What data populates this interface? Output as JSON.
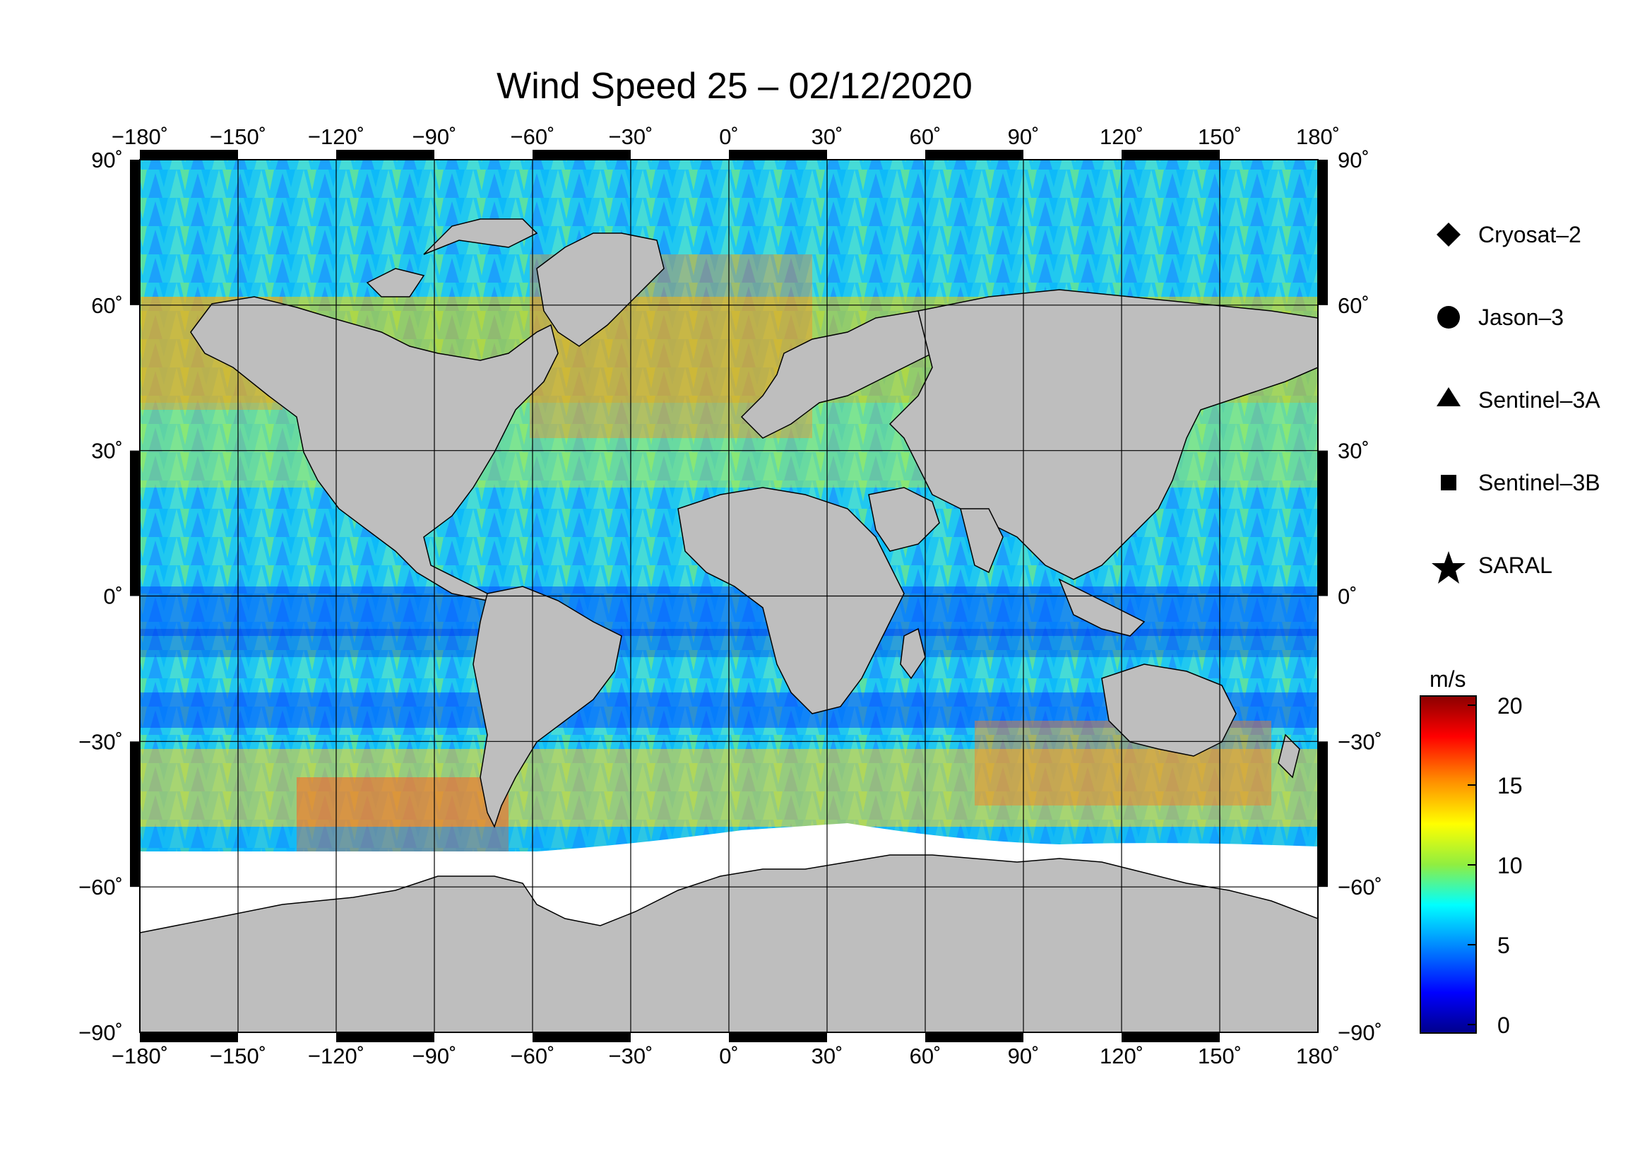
{
  "title": "Wind Speed 25 – 02/12/2020",
  "map": {
    "lon_ticks": [
      -180,
      -150,
      -120,
      -90,
      -60,
      -30,
      0,
      30,
      60,
      90,
      120,
      150,
      180
    ],
    "lat_ticks": [
      90,
      60,
      30,
      0,
      -30,
      -60,
      -90
    ],
    "lon_labels": [
      "−180˚",
      "−150˚",
      "−120˚",
      "−90˚",
      "−60˚",
      "−30˚",
      "0˚",
      "30˚",
      "60˚",
      "90˚",
      "120˚",
      "150˚",
      "180˚"
    ],
    "lat_labels": [
      "90˚",
      "60˚",
      "30˚",
      "0˚",
      "−30˚",
      "−60˚",
      "−90˚"
    ],
    "land_color": "#bebebe",
    "ice_color": "#ffffff",
    "grid_color": "#000000"
  },
  "legend": {
    "items": [
      {
        "label": "Cryosat–2",
        "marker": "diamond"
      },
      {
        "label": "Jason–3",
        "marker": "circle"
      },
      {
        "label": "Sentinel–3A",
        "marker": "triangle"
      },
      {
        "label": "Sentinel–3B",
        "marker": "square"
      },
      {
        "label": "SARAL",
        "marker": "star"
      }
    ]
  },
  "colorbar": {
    "unit": "m/s",
    "min": 0,
    "max": 20,
    "ticks": [
      "20",
      "15",
      "10",
      "5",
      "0"
    ],
    "tick_values": [
      20,
      15,
      10,
      5,
      0
    ],
    "colors": [
      "#8b0000",
      "#ff0000",
      "#ff8c00",
      "#ffff00",
      "#90ee40",
      "#00ffff",
      "#0080ff",
      "#0000ff",
      "#00008b"
    ]
  }
}
